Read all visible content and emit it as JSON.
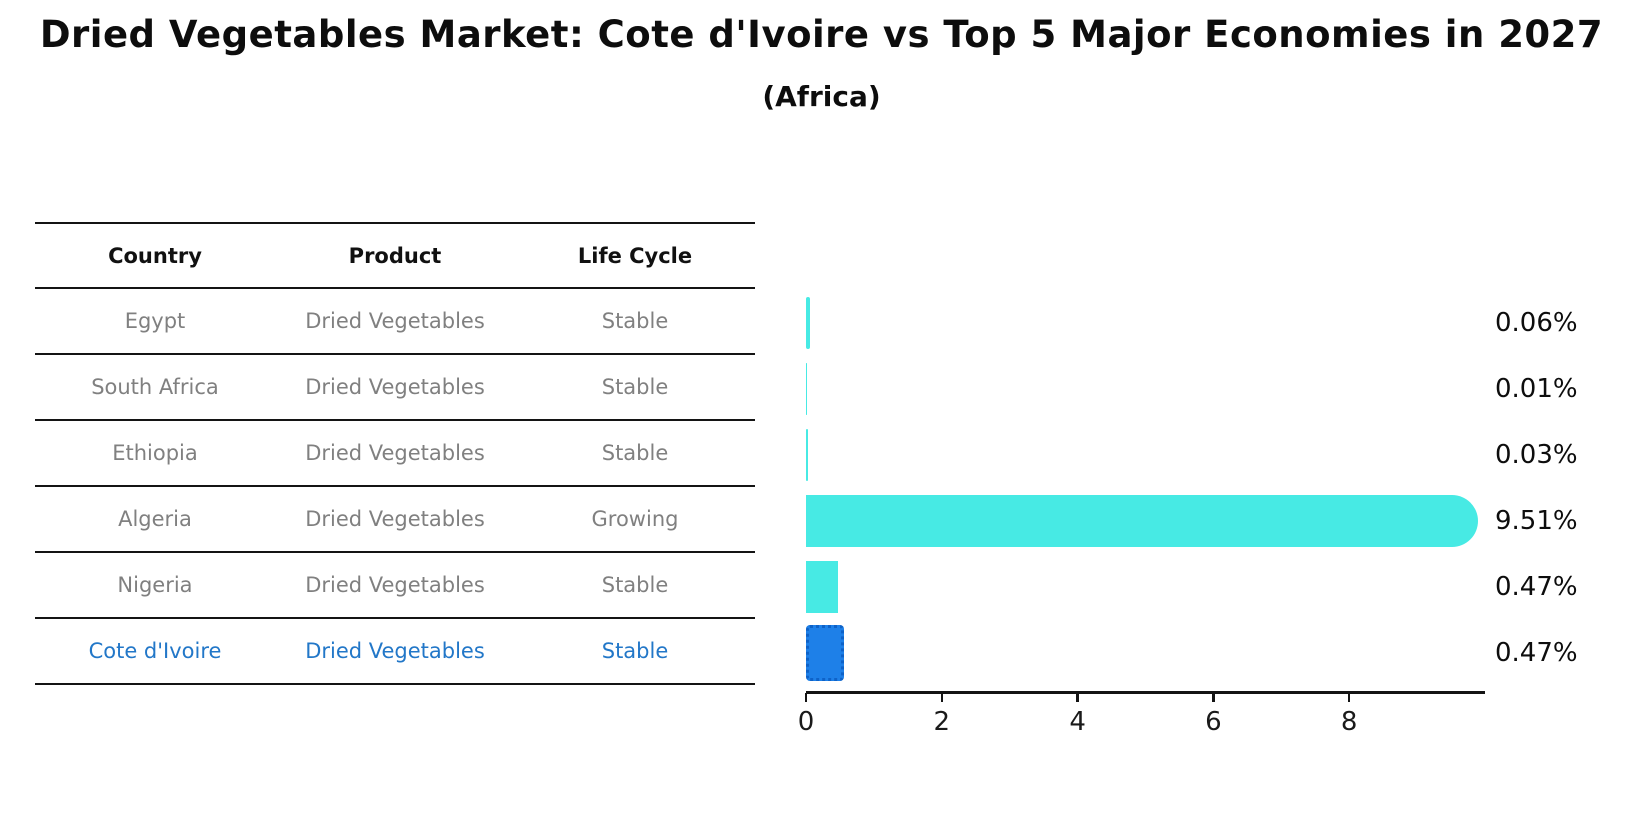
{
  "title": "Dried Vegetables Market: Cote d'Ivoire vs Top 5 Major Economies in 2027",
  "subtitle": "(Africa)",
  "table": {
    "headers": [
      "Country",
      "Product",
      "Life Cycle"
    ],
    "rows": [
      {
        "country": "Egypt",
        "product": "Dried Vegetables",
        "life_cycle": "Stable",
        "highlighted": false
      },
      {
        "country": "South Africa",
        "product": "Dried Vegetables",
        "life_cycle": "Stable",
        "highlighted": false
      },
      {
        "country": "Ethiopia",
        "product": "Dried Vegetables",
        "life_cycle": "Stable",
        "highlighted": false
      },
      {
        "country": "Algeria",
        "product": "Dried Vegetables",
        "life_cycle": "Growing",
        "highlighted": false
      },
      {
        "country": "Nigeria",
        "product": "Dried Vegetables",
        "life_cycle": "Stable",
        "highlighted": false
      },
      {
        "country": "Cote d'Ivoire",
        "product": "Dried Vegetables",
        "life_cycle": "Stable",
        "highlighted": true
      }
    ]
  },
  "chart_data": {
    "type": "bar",
    "orientation": "horizontal",
    "title": "Dried Vegetables Market: Cote d'Ivoire vs Top 5 Major Economies in 2027",
    "subtitle": "(Africa)",
    "categories": [
      "Egypt",
      "South Africa",
      "Ethiopia",
      "Algeria",
      "Nigeria",
      "Cote d'Ivoire"
    ],
    "values": [
      0.06,
      0.01,
      0.03,
      9.51,
      0.47,
      0.47
    ],
    "value_labels": [
      "0.06%",
      "0.01%",
      "0.03%",
      "9.51%",
      "0.47%",
      "0.47%"
    ],
    "unit": "%",
    "xlim": [
      0,
      10
    ],
    "xticks": [
      0,
      2,
      4,
      6,
      8
    ],
    "grid": false,
    "legend": false,
    "highlight_index": 5,
    "colors": {
      "bar": "#47eae4",
      "highlight_bar": "#1e80e8",
      "highlight_bar_border": "#0e62c8",
      "highlight_text": "#2277c8",
      "row_text": "#808080",
      "header_text": "#111111",
      "axis": "#141414"
    }
  }
}
